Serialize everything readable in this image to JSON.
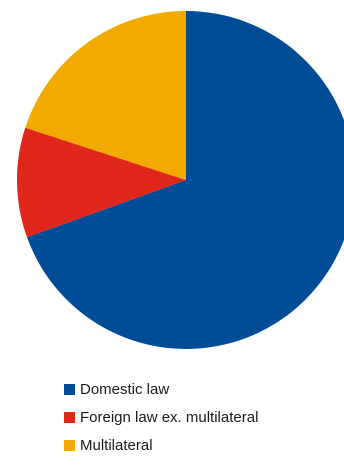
{
  "chart_data": {
    "type": "pie",
    "title": "",
    "start_angle_deg": 0,
    "direction": "clockwise",
    "legend_position": "bottom",
    "slices": [
      {
        "label": "Domestic law",
        "value": 69.5,
        "color": "#004C97"
      },
      {
        "label": "Foreign law ex. multilateral",
        "value": 10.5,
        "color": "#E1261C"
      },
      {
        "label": "Multilateral",
        "value": 20.0,
        "color": "#F2A900"
      }
    ]
  }
}
